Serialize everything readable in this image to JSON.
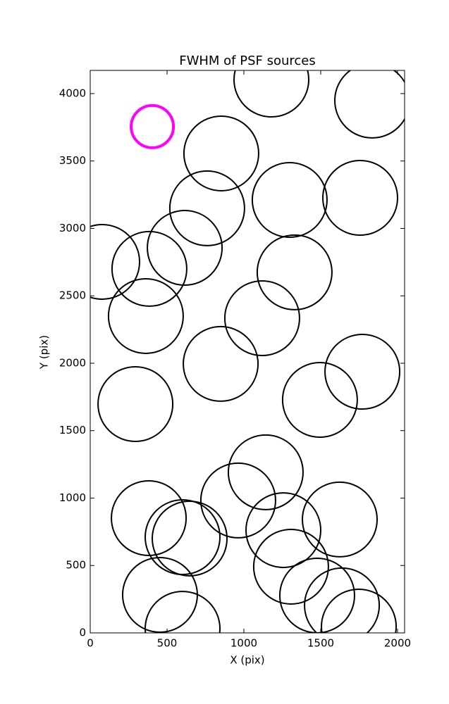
{
  "chart_data": {
    "type": "scatter",
    "title": "FWHM of PSF sources",
    "x_label": "X (pix)",
    "y_label": "Y (pix)",
    "xlim": [
      0,
      2046
    ],
    "ylim": [
      0,
      4172
    ],
    "xticks": [
      0,
      500,
      1000,
      1500,
      2000
    ],
    "yticks": [
      0,
      500,
      1000,
      1500,
      2000,
      2500,
      3000,
      3500,
      4000
    ],
    "grid": false,
    "series": [
      {
        "color": "#000000",
        "marker": "open-circle",
        "marker_radius": 53,
        "line_width": 2,
        "x": [
          1179,
          1835,
          853,
          1298,
          1757,
          761,
          78,
          615,
          385,
          1330,
          362,
          1119,
          849,
          1771,
          1495,
          294,
          1142,
          963,
          381,
          1624,
          1257,
          601,
          647,
          1307,
          454,
          1477,
          1638,
          601,
          1748
        ],
        "values": [
          4104,
          3948,
          3556,
          3211,
          3227,
          3149,
          2752,
          2856,
          2700,
          2674,
          2350,
          2334,
          1995,
          1937,
          1728,
          1697,
          1191,
          982,
          851,
          841,
          762,
          710,
          700,
          491,
          282,
          277,
          204,
          31,
          47
        ]
      },
      {
        "color": "#ff00ff",
        "marker": "open-circle",
        "marker_radius": 30,
        "line_width": 4,
        "x": [
          404
        ],
        "values": [
          3755
        ]
      }
    ]
  }
}
